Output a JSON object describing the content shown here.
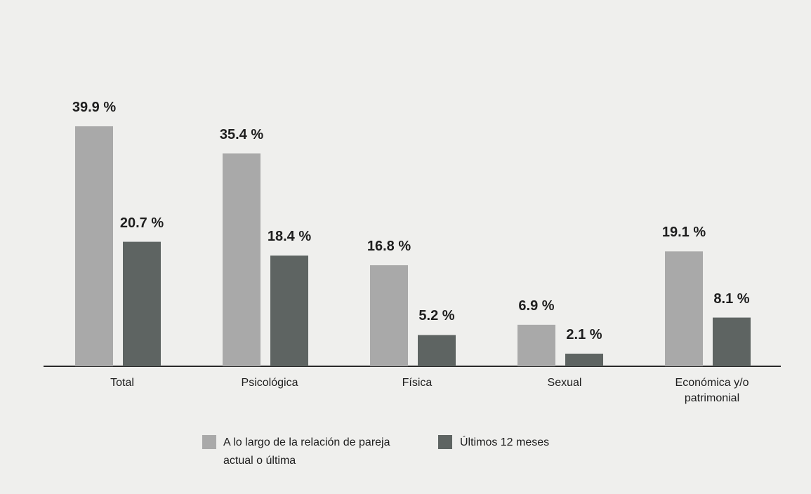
{
  "chart_data": {
    "type": "bar",
    "categories": [
      "Total",
      "Psicológica",
      "Física",
      "Sexual",
      "Económica y/o patrimonial"
    ],
    "series": [
      {
        "name": "A lo largo de la relación de pareja actual o última",
        "color": "#a9a9a9",
        "values": [
          39.9,
          35.4,
          16.8,
          6.9,
          19.1
        ],
        "value_labels": [
          "39.9 %",
          "35.4 %",
          "16.8 %",
          "6.9 %",
          "19.1 %"
        ]
      },
      {
        "name": "Últimos 12 meses",
        "color": "#5e6462",
        "values": [
          20.7,
          18.4,
          5.2,
          2.1,
          8.1
        ],
        "value_labels": [
          "20.7 %",
          "18.4 %",
          "5.2 %",
          "2.1 %",
          "8.1 %"
        ]
      }
    ],
    "legend": "bottom"
  }
}
